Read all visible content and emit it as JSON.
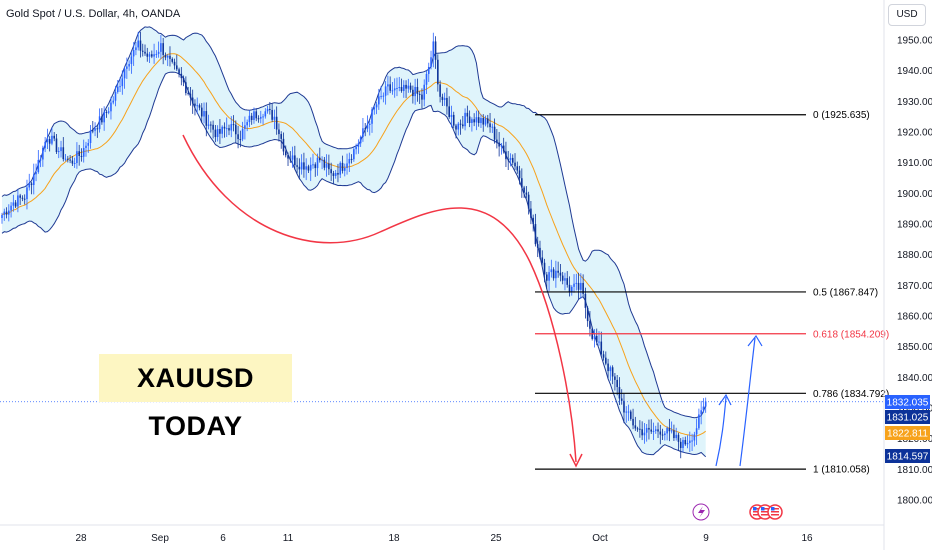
{
  "title": "Gold Spot / U.S. Dollar, 4h, OANDA",
  "currency_label": "USD",
  "banner_text": "XAUUSD TODAY",
  "chart_data": {
    "type": "candlestick",
    "title": "Gold Spot / U.S. Dollar, 4h, OANDA",
    "ylim": [
      1795,
      1960
    ],
    "y_ticks": [
      1800,
      1810,
      1820,
      1830,
      1840,
      1850,
      1860,
      1870,
      1880,
      1890,
      1900,
      1910,
      1920,
      1930,
      1940,
      1950
    ],
    "x_ticks": [
      "28",
      "Sep",
      "6",
      "11",
      "18",
      "25",
      "Oct",
      "9",
      "16"
    ],
    "close_anchors": [
      [
        0,
        1893
      ],
      [
        5,
        1897
      ],
      [
        10,
        1899
      ],
      [
        15,
        1908
      ],
      [
        20,
        1919
      ],
      [
        25,
        1914
      ],
      [
        30,
        1910
      ],
      [
        35,
        1913
      ],
      [
        40,
        1921
      ],
      [
        45,
        1925
      ],
      [
        50,
        1932
      ],
      [
        55,
        1943
      ],
      [
        60,
        1948
      ],
      [
        65,
        1944
      ],
      [
        70,
        1948
      ],
      [
        75,
        1941
      ],
      [
        80,
        1936
      ],
      [
        85,
        1929
      ],
      [
        90,
        1924
      ],
      [
        95,
        1919
      ],
      [
        100,
        1922
      ],
      [
        105,
        1919
      ],
      [
        110,
        1925
      ],
      [
        115,
        1927
      ],
      [
        120,
        1925
      ],
      [
        125,
        1913
      ],
      [
        130,
        1910
      ],
      [
        135,
        1909
      ],
      [
        140,
        1911
      ],
      [
        145,
        1906
      ],
      [
        150,
        1909
      ],
      [
        155,
        1914
      ],
      [
        160,
        1921
      ],
      [
        165,
        1929
      ],
      [
        170,
        1934
      ],
      [
        175,
        1933
      ],
      [
        180,
        1934
      ],
      [
        185,
        1931
      ],
      [
        190,
        1948
      ],
      [
        193,
        1932
      ],
      [
        200,
        1922
      ],
      [
        205,
        1925
      ],
      [
        210,
        1924
      ],
      [
        215,
        1922
      ],
      [
        220,
        1914
      ],
      [
        225,
        1911
      ],
      [
        230,
        1902
      ],
      [
        235,
        1885
      ],
      [
        240,
        1873
      ],
      [
        245,
        1875
      ],
      [
        250,
        1869
      ],
      [
        255,
        1869
      ],
      [
        260,
        1854
      ],
      [
        265,
        1847
      ],
      [
        270,
        1838
      ],
      [
        275,
        1828
      ],
      [
        280,
        1823
      ],
      [
        285,
        1822
      ],
      [
        290,
        1823
      ],
      [
        295,
        1821
      ],
      [
        300,
        1818
      ],
      [
        305,
        1822
      ],
      [
        310,
        1832
      ]
    ],
    "fib_levels": [
      {
        "label": "0 (1925.635)",
        "value": 1925.635,
        "color": "#000000"
      },
      {
        "label": "0.5 (1867.847)",
        "value": 1867.847,
        "color": "#000000"
      },
      {
        "label": "0.618 (1854.209)",
        "value": 1854.209,
        "color": "#f23645"
      },
      {
        "label": "0.786 (1834.792)",
        "value": 1834.792,
        "color": "#000000"
      },
      {
        "label": "1 (1810.058)",
        "value": 1810.058,
        "color": "#000000"
      }
    ],
    "price_labels": [
      {
        "text": "1832.035",
        "value": 1832.035,
        "color": "#2962ff"
      },
      {
        "text": "1831.025",
        "value": 1831.025,
        "color": "#0c3299"
      },
      {
        "text": "1822.811",
        "value": 1822.811,
        "color": "#f7a21b"
      },
      {
        "text": "1814.597",
        "value": 1814.597,
        "color": "#0c3299"
      }
    ],
    "up_color": "#2962ff",
    "down_color": "#0c3299",
    "band_fill": "#dff4fb",
    "band_line": "#1f3a93",
    "mid_line": "#f7a21b",
    "projection_color": "#f23645",
    "target_arrow_color": "#2962ff"
  }
}
